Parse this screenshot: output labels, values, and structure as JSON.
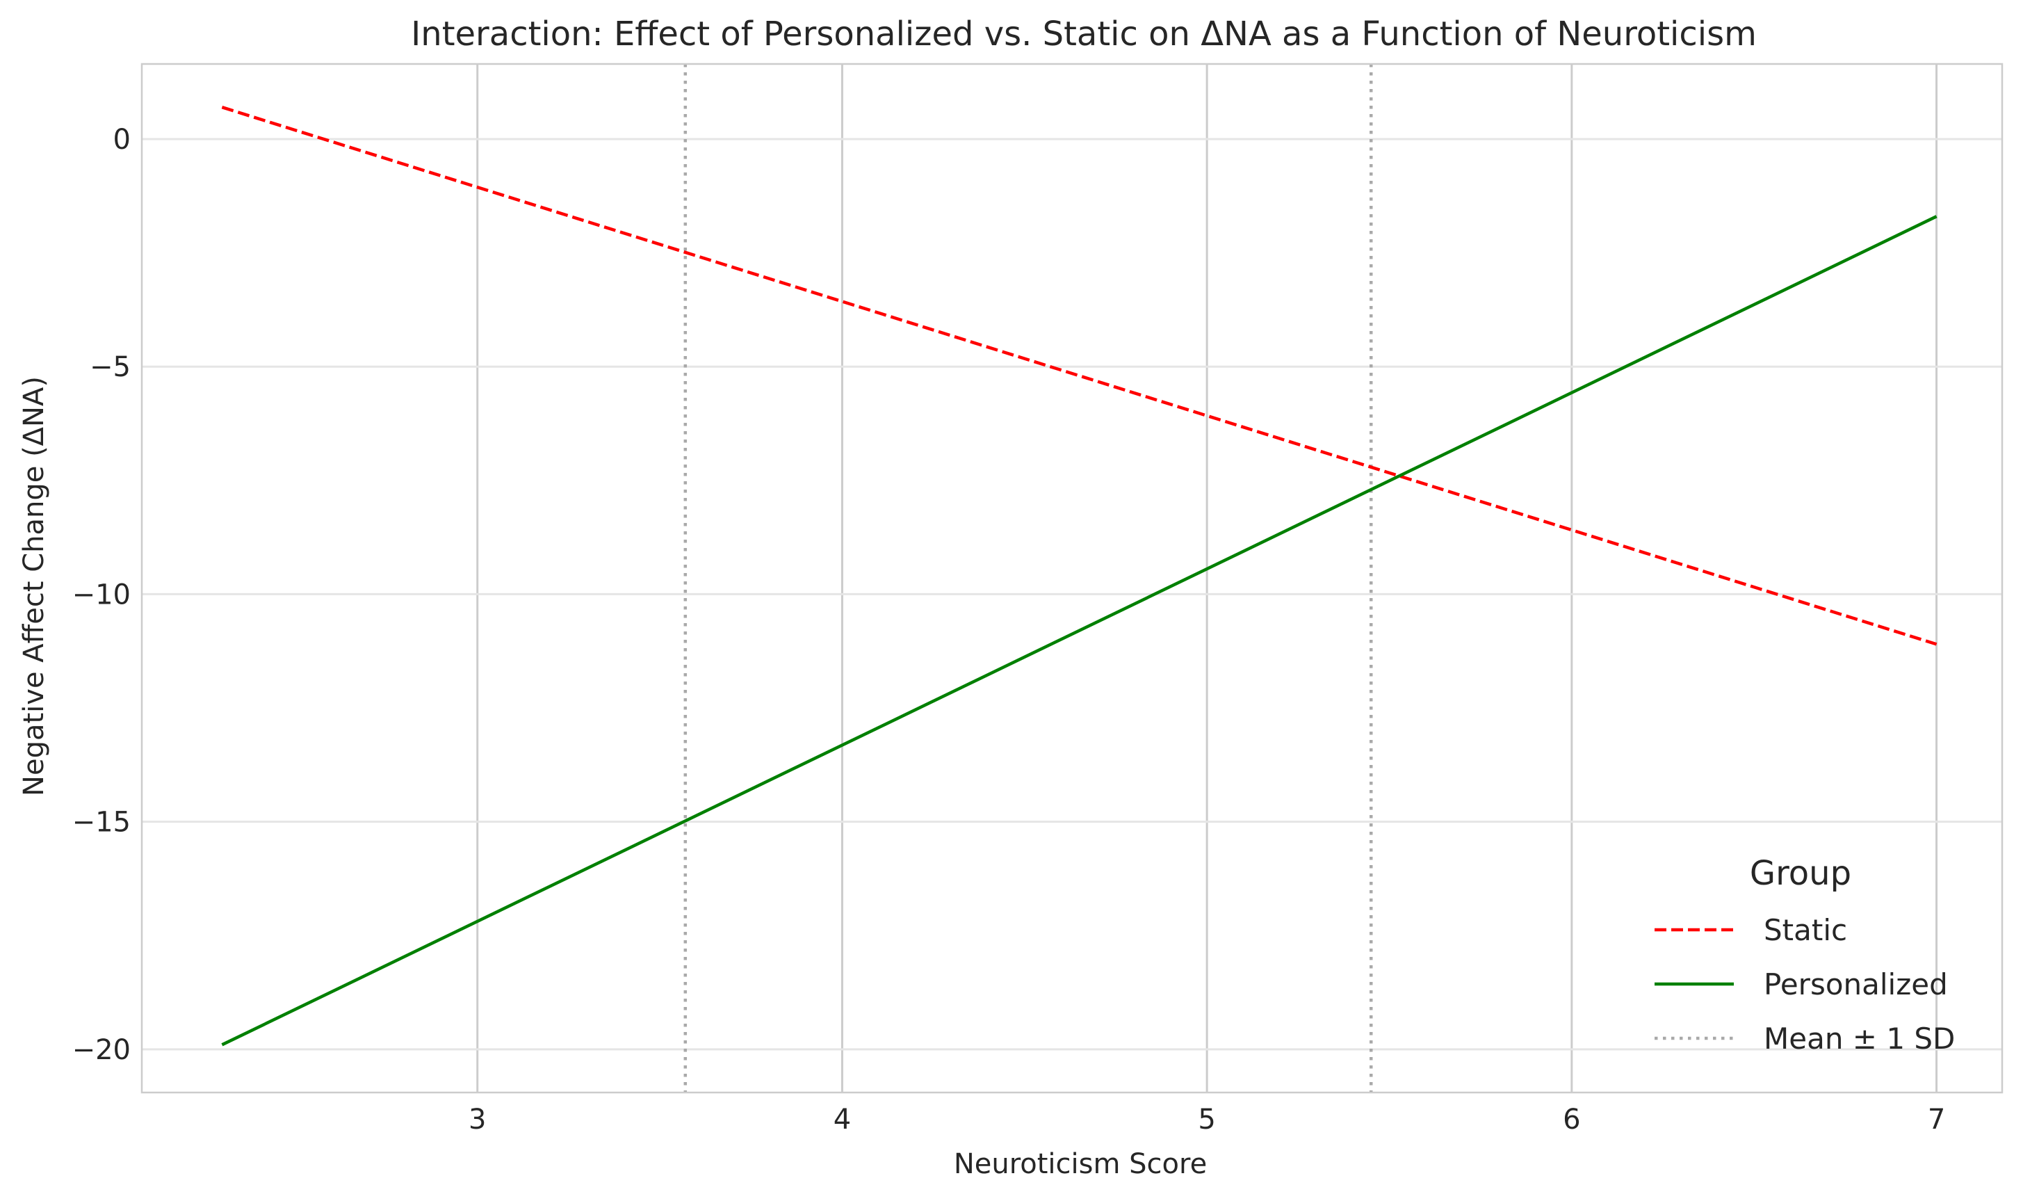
{
  "chart_data": {
    "type": "line",
    "title": "Interaction: Effect of Personalized vs. Static on ΔNA as a Function of Neuroticism",
    "xlabel": "Neuroticism Score",
    "ylabel": "Negative Affect Change (ΔNA)",
    "xlim": [
      2.08,
      7.18
    ],
    "ylim": [
      -20.95,
      1.65
    ],
    "x_ticks": [
      3,
      4,
      5,
      6,
      7
    ],
    "y_ticks": [
      0,
      -5,
      -10,
      -15,
      -20
    ],
    "x_tick_labels": [
      "3",
      "4",
      "5",
      "6",
      "7"
    ],
    "y_tick_labels": [
      "0",
      "−5",
      "−10",
      "−15",
      "−20"
    ],
    "grid": true,
    "legend_position": "lower-right",
    "legend_title": "Group",
    "series": [
      {
        "name": "Static",
        "style": "dashed",
        "color": "#ff0000",
        "x": [
          2.3,
          7.0
        ],
        "y": [
          0.7,
          -11.1
        ]
      },
      {
        "name": "Personalized",
        "style": "solid",
        "color": "#008000",
        "x": [
          2.3,
          7.0
        ],
        "y": [
          -19.9,
          -1.7
        ]
      }
    ],
    "reference_lines": {
      "name": "Mean ± 1 SD",
      "style": "dotted",
      "color": "#a9a9a9",
      "x": [
        3.57,
        5.45
      ]
    }
  }
}
